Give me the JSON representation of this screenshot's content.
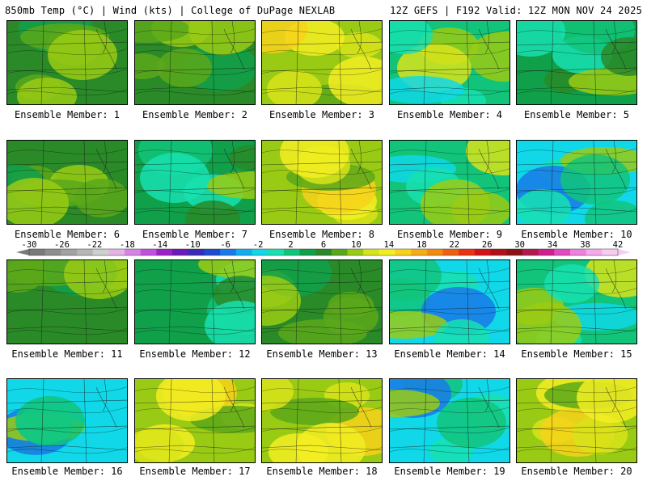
{
  "header": {
    "left": "850mb Temp (°C) | Wind (kts) | College of DuPage NEXLAB",
    "right": "12Z GEFS | F192 Valid: 12Z MON NOV 24 2025"
  },
  "colorbar": {
    "labels": [
      "-30",
      "-26",
      "-22",
      "-18",
      "-14",
      "-10",
      "-6",
      "-2",
      "2",
      "6",
      "10",
      "14",
      "18",
      "22",
      "26",
      "30",
      "34",
      "38",
      "42"
    ],
    "colors": [
      "#7a7a7a",
      "#8e8e8e",
      "#a2a2a2",
      "#b6b6b6",
      "#cfcfcf",
      "#e6b3e6",
      "#d783e6",
      "#c050e0",
      "#a020c8",
      "#6a1ab8",
      "#3a2ab8",
      "#1d4ad0",
      "#1a7ae8",
      "#12aef0",
      "#10d8e8",
      "#18e0b0",
      "#12c47a",
      "#10a04a",
      "#2a8a28",
      "#5aa81a",
      "#9acb14",
      "#d8e41a",
      "#f3ee22",
      "#f7d21a",
      "#f6ad14",
      "#f38a10",
      "#ef5f10",
      "#e83212",
      "#d4101a",
      "#b0101a",
      "#8a1216",
      "#b01a50",
      "#d0208a",
      "#e24ac0",
      "#ef80dc",
      "#f5aaeb",
      "#f8ccf0"
    ]
  },
  "members": [
    {
      "label": "Ensemble Member: 1",
      "scheme": "green"
    },
    {
      "label": "Ensemble Member: 2",
      "scheme": "green"
    },
    {
      "label": "Ensemble Member: 3",
      "scheme": "warm"
    },
    {
      "label": "Ensemble Member: 4",
      "scheme": "coolwarm"
    },
    {
      "label": "Ensemble Member: 5",
      "scheme": "green-cool"
    },
    {
      "label": "Ensemble Member: 6",
      "scheme": "green"
    },
    {
      "label": "Ensemble Member: 7",
      "scheme": "green-cool"
    },
    {
      "label": "Ensemble Member: 8",
      "scheme": "warm"
    },
    {
      "label": "Ensemble Member: 9",
      "scheme": "coolwarm"
    },
    {
      "label": "Ensemble Member: 10",
      "scheme": "cool"
    },
    {
      "label": "Ensemble Member: 11",
      "scheme": "green"
    },
    {
      "label": "Ensemble Member: 12",
      "scheme": "green-cool"
    },
    {
      "label": "Ensemble Member: 13",
      "scheme": "green"
    },
    {
      "label": "Ensemble Member: 14",
      "scheme": "cool"
    },
    {
      "label": "Ensemble Member: 15",
      "scheme": "coolwarm"
    },
    {
      "label": "Ensemble Member: 16",
      "scheme": "cool"
    },
    {
      "label": "Ensemble Member: 17",
      "scheme": "warm"
    },
    {
      "label": "Ensemble Member: 18",
      "scheme": "warm"
    },
    {
      "label": "Ensemble Member: 19",
      "scheme": "cool"
    },
    {
      "label": "Ensemble Member: 20",
      "scheme": "warm"
    }
  ]
}
